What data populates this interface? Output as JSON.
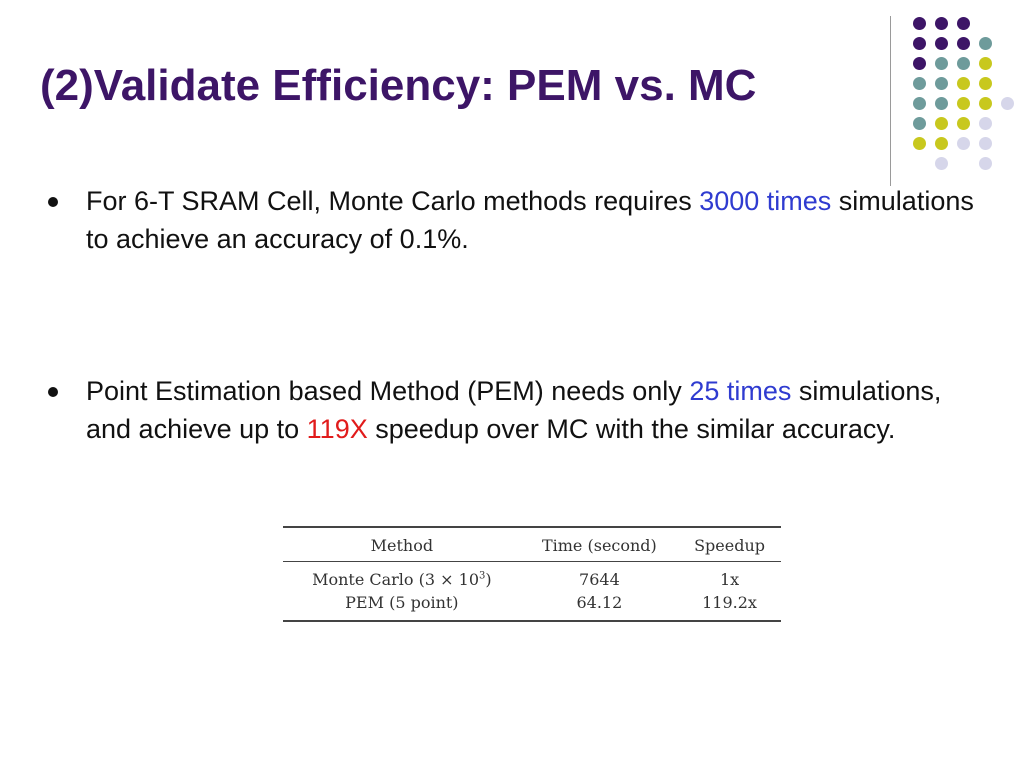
{
  "slide": {
    "title": "(2)Validate Efficiency: PEM vs. MC"
  },
  "decoration": {
    "colors": {
      "purple": "#3d1567",
      "teal": "#6e9b9b",
      "lime": "#c8c81e",
      "lavender": "#d6d6ea"
    }
  },
  "bullets": [
    {
      "parts": [
        "For 6-T SRAM Cell, Monte Carlo methods requires ",
        "3000 times",
        " simulations to achieve an accuracy of 0.1%."
      ]
    },
    {
      "parts": [
        "Point Estimation based Method (PEM) needs only ",
        "25 times",
        " simulations, and achieve up to ",
        "119X",
        " speedup over MC with the similar accuracy."
      ]
    }
  ],
  "table": {
    "headers": [
      "Method",
      "Time (second)",
      "Speedup"
    ],
    "rows": [
      {
        "method_prefix": "Monte Carlo (3 × 10",
        "method_exp": "3",
        "method_suffix": ")",
        "time": "7644",
        "speedup": "1x"
      },
      {
        "method": "PEM (5 point)",
        "time": "64.12",
        "speedup": "119.2x"
      }
    ]
  }
}
